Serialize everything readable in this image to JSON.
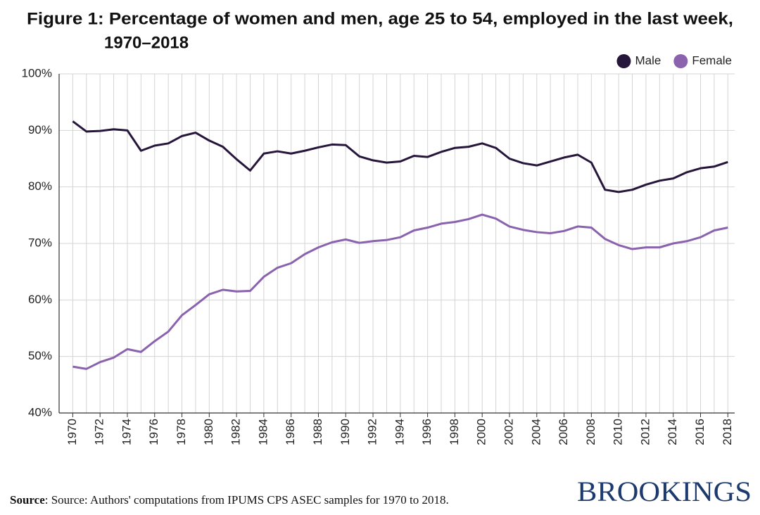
{
  "chart_data": {
    "type": "line",
    "title": [
      "Figure 1: Percentage of women and men, age 25 to 54, employed in the last week,",
      "1970–2018"
    ],
    "source_label": "Source",
    "source": ": Source: Authors' computations from IPUMS CPS ASEC samples for 1970 to 2018.",
    "brand": "BROOKINGS",
    "x": [
      1970,
      1971,
      1972,
      1973,
      1974,
      1975,
      1976,
      1977,
      1978,
      1979,
      1980,
      1981,
      1982,
      1983,
      1984,
      1985,
      1986,
      1987,
      1988,
      1989,
      1990,
      1991,
      1992,
      1993,
      1994,
      1995,
      1996,
      1997,
      1998,
      1999,
      2000,
      2001,
      2002,
      2003,
      2004,
      2005,
      2006,
      2007,
      2008,
      2009,
      2010,
      2011,
      2012,
      2013,
      2014,
      2015,
      2016,
      2017,
      2018
    ],
    "series": [
      {
        "name": "Male",
        "color": "#26163b",
        "values": [
          91.6,
          89.8,
          89.9,
          90.2,
          90.0,
          86.4,
          87.3,
          87.7,
          89.0,
          89.6,
          88.2,
          87.1,
          84.9,
          82.9,
          85.9,
          86.3,
          85.9,
          86.4,
          87.0,
          87.5,
          87.4,
          85.4,
          84.7,
          84.3,
          84.5,
          85.5,
          85.3,
          86.2,
          86.9,
          87.1,
          87.7,
          86.9,
          85.0,
          84.2,
          83.8,
          84.5,
          85.2,
          85.7,
          84.3,
          79.5,
          79.1,
          79.5,
          80.4,
          81.1,
          81.5,
          82.6,
          83.3,
          83.6,
          84.4
        ]
      },
      {
        "name": "Female",
        "color": "#8a62ad",
        "values": [
          48.2,
          47.8,
          49.0,
          49.8,
          51.3,
          50.8,
          52.7,
          54.4,
          57.3,
          59.1,
          61.0,
          61.8,
          61.5,
          61.6,
          64.1,
          65.7,
          66.5,
          68.1,
          69.3,
          70.2,
          70.7,
          70.1,
          70.4,
          70.6,
          71.1,
          72.3,
          72.8,
          73.5,
          73.8,
          74.3,
          75.1,
          74.4,
          73.0,
          72.4,
          72.0,
          71.8,
          72.2,
          73.0,
          72.8,
          70.8,
          69.7,
          69.0,
          69.3,
          69.3,
          70.0,
          70.4,
          71.1,
          72.3,
          72.8
        ]
      }
    ],
    "xlim": [
      1969,
      2018.5
    ],
    "xticks": [
      1970,
      1972,
      1974,
      1976,
      1978,
      1980,
      1982,
      1984,
      1986,
      1988,
      1990,
      1992,
      1994,
      1996,
      1998,
      2000,
      2002,
      2004,
      2006,
      2008,
      2010,
      2012,
      2014,
      2016,
      2018
    ],
    "ylim": [
      40,
      100
    ],
    "yticks": [
      {
        "value": 40,
        "label": "40%"
      },
      {
        "value": 50,
        "label": "50%"
      },
      {
        "value": 60,
        "label": "60%"
      },
      {
        "value": 70,
        "label": "70%"
      },
      {
        "value": 80,
        "label": "80%"
      },
      {
        "value": 90,
        "label": "90%"
      },
      {
        "value": 100,
        "label": "100%"
      }
    ],
    "grid": true,
    "legend": "top-right"
  }
}
